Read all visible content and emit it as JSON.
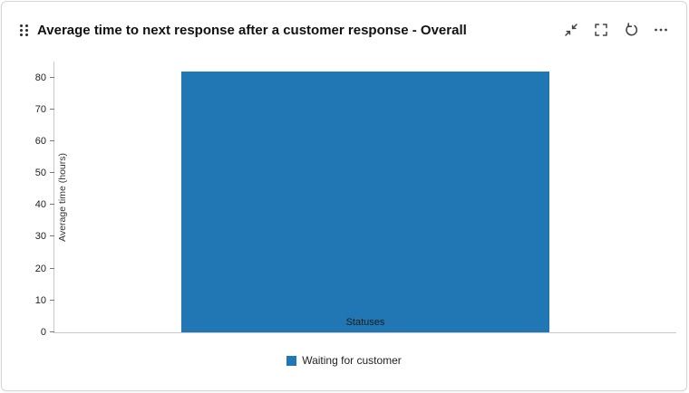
{
  "header": {
    "title": "Average time to next response after a customer response - Overall",
    "actions": [
      {
        "name": "collapse",
        "icon": "collapse-arrows-icon"
      },
      {
        "name": "fullscreen",
        "icon": "fullscreen-icon"
      },
      {
        "name": "refresh",
        "icon": "refresh-icon"
      },
      {
        "name": "more",
        "icon": "ellipsis-icon"
      }
    ]
  },
  "chart_data": {
    "type": "bar",
    "categories": [
      "Statuses"
    ],
    "series": [
      {
        "name": "Waiting for customer",
        "values": [
          82
        ]
      }
    ],
    "xlabel": "Statuses",
    "ylabel": "Average time (hours)",
    "ylim": [
      0,
      85
    ],
    "ytick_step": 10,
    "ytick_max": 80,
    "bar_color": "#2077b4",
    "grid": false,
    "legend_position": "bottom"
  },
  "legend": {
    "items": [
      {
        "label": "Waiting for customer",
        "color": "#2077b4"
      }
    ]
  }
}
